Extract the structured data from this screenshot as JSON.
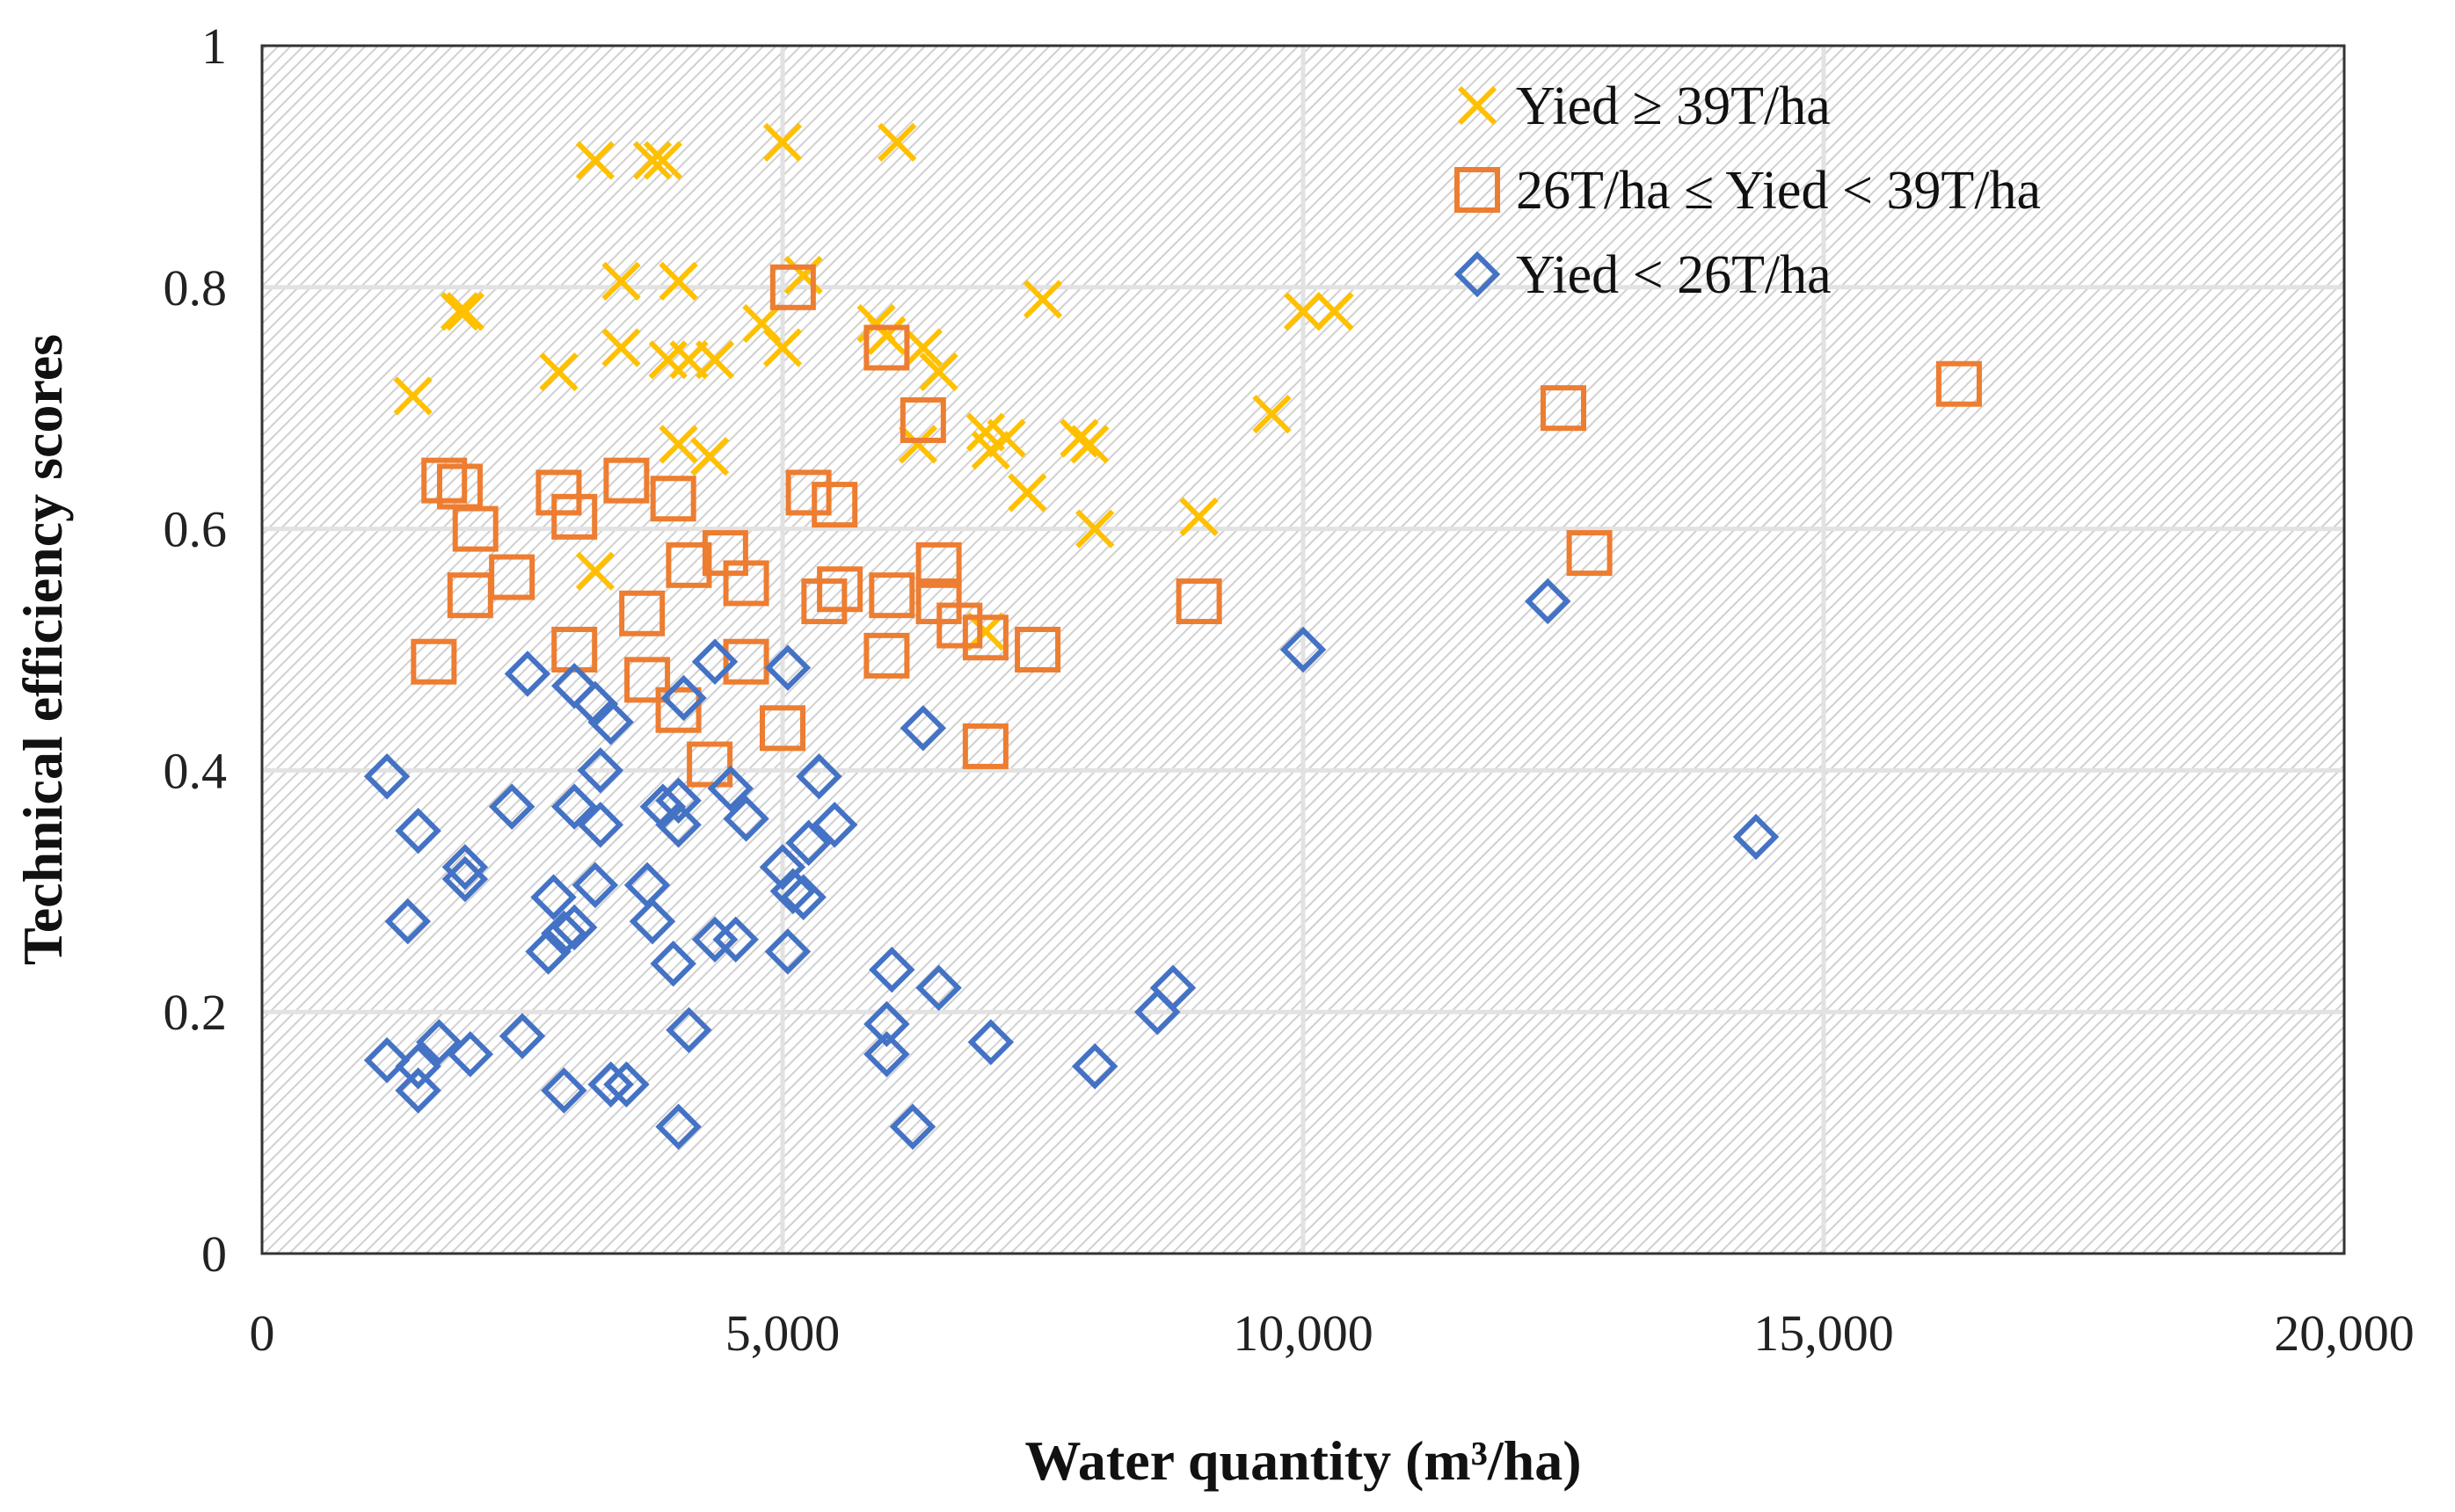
{
  "chart_data": {
    "type": "scatter",
    "xlabel": "Water quantity (m³/ha)",
    "ylabel": "Technical efficiency scores",
    "xlim": [
      0,
      20000
    ],
    "ylim": [
      0,
      1
    ],
    "x_ticks": [
      0,
      5000,
      10000,
      15000,
      20000
    ],
    "x_tick_labels": [
      "0",
      "5,000",
      "10,000",
      "15,000",
      "20,000"
    ],
    "y_ticks": [
      0,
      0.2,
      0.4,
      0.6,
      0.8,
      1
    ],
    "y_tick_labels": [
      "0",
      "0.2",
      "0.4",
      "0.6",
      "0.8",
      "1"
    ],
    "grid": true,
    "legend_position": "top-right",
    "series": [
      {
        "name": "Yied ≥ 39T/ha",
        "marker": "x",
        "color": "#FFC000",
        "points": [
          [
            3200,
            0.905
          ],
          [
            3750,
            0.905
          ],
          [
            3850,
            0.905
          ],
          [
            5000,
            0.92
          ],
          [
            6100,
            0.92
          ],
          [
            1900,
            0.78
          ],
          [
            1950,
            0.78
          ],
          [
            3450,
            0.805
          ],
          [
            4000,
            0.805
          ],
          [
            5200,
            0.81
          ],
          [
            7500,
            0.79
          ],
          [
            10000,
            0.78
          ],
          [
            10300,
            0.78
          ],
          [
            1450,
            0.71
          ],
          [
            2850,
            0.73
          ],
          [
            3450,
            0.75
          ],
          [
            3900,
            0.74
          ],
          [
            4100,
            0.74
          ],
          [
            4350,
            0.74
          ],
          [
            4800,
            0.77
          ],
          [
            5000,
            0.75
          ],
          [
            5900,
            0.77
          ],
          [
            6000,
            0.76
          ],
          [
            6350,
            0.75
          ],
          [
            6500,
            0.73
          ],
          [
            9700,
            0.695
          ],
          [
            4000,
            0.67
          ],
          [
            4300,
            0.66
          ],
          [
            6300,
            0.67
          ],
          [
            6950,
            0.68
          ],
          [
            7000,
            0.665
          ],
          [
            7150,
            0.675
          ],
          [
            7350,
            0.63
          ],
          [
            7850,
            0.675
          ],
          [
            7950,
            0.67
          ],
          [
            8000,
            0.6
          ],
          [
            9000,
            0.61
          ],
          [
            3200,
            0.565
          ],
          [
            6950,
            0.515
          ]
        ]
      },
      {
        "name": "26T/ha ≤ Yied < 39T/ha",
        "marker": "square",
        "color": "#ED7D31",
        "points": [
          [
            5100,
            0.8
          ],
          [
            6000,
            0.75
          ],
          [
            6350,
            0.69
          ],
          [
            12500,
            0.7
          ],
          [
            16300,
            0.72
          ],
          [
            1750,
            0.64
          ],
          [
            1900,
            0.635
          ],
          [
            2050,
            0.6
          ],
          [
            2850,
            0.63
          ],
          [
            3000,
            0.61
          ],
          [
            3500,
            0.64
          ],
          [
            3950,
            0.625
          ],
          [
            5250,
            0.63
          ],
          [
            5500,
            0.62
          ],
          [
            2400,
            0.56
          ],
          [
            2000,
            0.545
          ],
          [
            4100,
            0.57
          ],
          [
            4450,
            0.58
          ],
          [
            4650,
            0.555
          ],
          [
            5400,
            0.54
          ],
          [
            5550,
            0.55
          ],
          [
            6050,
            0.545
          ],
          [
            6500,
            0.57
          ],
          [
            6500,
            0.54
          ],
          [
            6700,
            0.52
          ],
          [
            9000,
            0.54
          ],
          [
            12750,
            0.58
          ],
          [
            3650,
            0.53
          ],
          [
            1650,
            0.49
          ],
          [
            3000,
            0.5
          ],
          [
            3700,
            0.475
          ],
          [
            4000,
            0.45
          ],
          [
            4650,
            0.49
          ],
          [
            6000,
            0.495
          ],
          [
            6950,
            0.51
          ],
          [
            7450,
            0.5
          ],
          [
            4300,
            0.405
          ],
          [
            5000,
            0.435
          ],
          [
            6950,
            0.42
          ]
        ]
      },
      {
        "name": "Yied < 26T/ha",
        "marker": "diamond",
        "color": "#4472C4",
        "points": [
          [
            2550,
            0.48
          ],
          [
            3000,
            0.47
          ],
          [
            3200,
            0.455
          ],
          [
            3350,
            0.44
          ],
          [
            4050,
            0.46
          ],
          [
            4350,
            0.49
          ],
          [
            5050,
            0.485
          ],
          [
            6350,
            0.435
          ],
          [
            10000,
            0.5
          ],
          [
            12350,
            0.54
          ],
          [
            14350,
            0.345
          ],
          [
            1200,
            0.395
          ],
          [
            3250,
            0.4
          ],
          [
            5350,
            0.395
          ],
          [
            4000,
            0.375
          ],
          [
            3850,
            0.37
          ],
          [
            2400,
            0.37
          ],
          [
            3000,
            0.37
          ],
          [
            1500,
            0.35
          ],
          [
            3250,
            0.355
          ],
          [
            4000,
            0.355
          ],
          [
            4500,
            0.385
          ],
          [
            4650,
            0.36
          ],
          [
            5250,
            0.34
          ],
          [
            5500,
            0.355
          ],
          [
            5000,
            0.32
          ],
          [
            1950,
            0.32
          ],
          [
            1950,
            0.31
          ],
          [
            3200,
            0.305
          ],
          [
            3700,
            0.305
          ],
          [
            2800,
            0.295
          ],
          [
            5100,
            0.3
          ],
          [
            5200,
            0.295
          ],
          [
            1400,
            0.275
          ],
          [
            3000,
            0.27
          ],
          [
            2900,
            0.265
          ],
          [
            3750,
            0.275
          ],
          [
            2750,
            0.25
          ],
          [
            3950,
            0.24
          ],
          [
            4350,
            0.26
          ],
          [
            4550,
            0.26
          ],
          [
            5050,
            0.25
          ],
          [
            6050,
            0.235
          ],
          [
            6500,
            0.22
          ],
          [
            8750,
            0.22
          ],
          [
            8600,
            0.2
          ],
          [
            6000,
            0.19
          ],
          [
            4100,
            0.185
          ],
          [
            1200,
            0.16
          ],
          [
            1500,
            0.155
          ],
          [
            1700,
            0.175
          ],
          [
            2000,
            0.165
          ],
          [
            2500,
            0.18
          ],
          [
            1500,
            0.135
          ],
          [
            2900,
            0.135
          ],
          [
            3350,
            0.14
          ],
          [
            3500,
            0.14
          ],
          [
            6000,
            0.165
          ],
          [
            7000,
            0.175
          ],
          [
            8000,
            0.155
          ],
          [
            4000,
            0.105
          ],
          [
            6250,
            0.105
          ]
        ]
      }
    ]
  }
}
